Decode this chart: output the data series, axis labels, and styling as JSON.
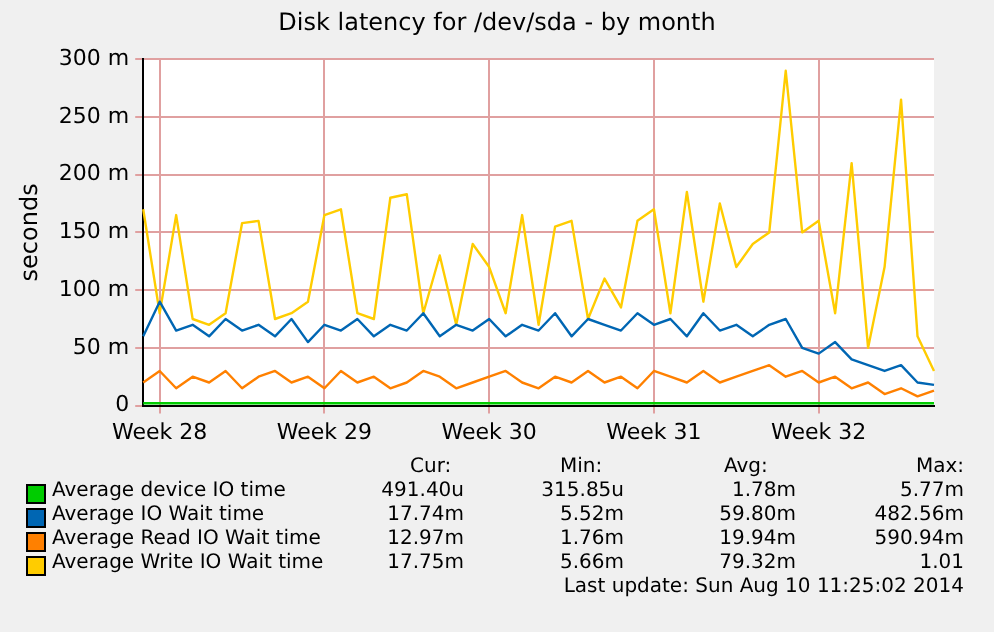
{
  "chart_data": {
    "type": "line",
    "title": "Disk latency for /dev/sda - by month",
    "ylabel": "seconds",
    "categories": [
      null,
      "Week 28",
      null,
      null,
      null,
      null,
      null,
      null,
      null,
      null,
      null,
      "Week 29",
      null,
      null,
      null,
      null,
      null,
      null,
      null,
      null,
      null,
      "Week 30",
      null,
      null,
      null,
      null,
      null,
      null,
      null,
      null,
      null,
      "Week 31",
      null,
      null,
      null,
      null,
      null,
      null,
      null,
      null,
      null,
      "Week 32",
      null,
      null,
      null,
      null,
      null,
      null,
      null
    ],
    "ylim": [
      0,
      300
    ],
    "yticks": [
      0,
      {
        "value": 50,
        "label": "50 m"
      },
      {
        "value": 100,
        "label": "100 m"
      },
      {
        "value": 150,
        "label": "150 m"
      },
      {
        "value": 200,
        "label": "200 m"
      },
      {
        "value": 250,
        "label": "250 m"
      },
      {
        "value": 300,
        "label": "300 m"
      }
    ],
    "grid": true,
    "legend": "bottom",
    "marker": "none",
    "series": [
      {
        "name": "Average device IO time",
        "color": "#00cc00",
        "values": [
          2,
          2,
          2,
          2,
          2,
          2,
          2,
          2,
          2,
          2,
          2,
          2,
          2,
          2,
          2,
          2,
          2,
          2,
          2,
          2,
          2,
          2,
          2,
          2,
          2,
          2,
          2,
          2,
          2,
          2,
          2,
          2,
          2,
          2,
          2,
          2,
          2,
          2,
          2,
          2,
          2,
          2,
          2,
          2,
          2,
          2,
          2,
          2,
          2
        ]
      },
      {
        "name": "Average IO Wait time",
        "color": "#0066b3",
        "values": [
          60,
          90,
          65,
          70,
          60,
          75,
          65,
          70,
          60,
          75,
          55,
          70,
          65,
          75,
          60,
          70,
          65,
          80,
          60,
          70,
          65,
          75,
          60,
          70,
          65,
          80,
          60,
          75,
          70,
          65,
          80,
          70,
          75,
          60,
          80,
          65,
          70,
          60,
          70,
          75,
          50,
          45,
          55,
          40,
          35,
          30,
          35,
          20,
          18
        ]
      },
      {
        "name": "Average Read IO Wait time",
        "color": "#ff8000",
        "values": [
          20,
          30,
          15,
          25,
          20,
          30,
          15,
          25,
          30,
          20,
          25,
          15,
          30,
          20,
          25,
          15,
          20,
          30,
          25,
          15,
          20,
          25,
          30,
          20,
          15,
          25,
          20,
          30,
          20,
          25,
          15,
          30,
          25,
          20,
          30,
          20,
          25,
          30,
          35,
          25,
          30,
          20,
          25,
          15,
          20,
          10,
          15,
          8,
          13
        ]
      },
      {
        "name": "Average Write IO Wait time",
        "color": "#ffcc00",
        "values": [
          170,
          80,
          165,
          75,
          70,
          80,
          158,
          160,
          75,
          80,
          90,
          165,
          170,
          80,
          75,
          180,
          183,
          80,
          130,
          70,
          140,
          120,
          80,
          165,
          70,
          155,
          160,
          75,
          110,
          85,
          160,
          170,
          80,
          185,
          90,
          175,
          120,
          140,
          150,
          290,
          150,
          160,
          80,
          210,
          50,
          120,
          265,
          60,
          30
        ]
      }
    ],
    "annotations": [
      "Cur:",
      "Min:",
      "Avg:",
      "Max:",
      "491.40u",
      "315.85u",
      "1.78m",
      "5.77m",
      "17.74m",
      "5.52m",
      "59.80m",
      "482.56m",
      "12.97m",
      "1.76m",
      "19.94m",
      "590.94m",
      "17.75m",
      "5.66m",
      "79.32m",
      "1.01",
      "Last update: Sun Aug 10 11:25:02 2014"
    ]
  }
}
